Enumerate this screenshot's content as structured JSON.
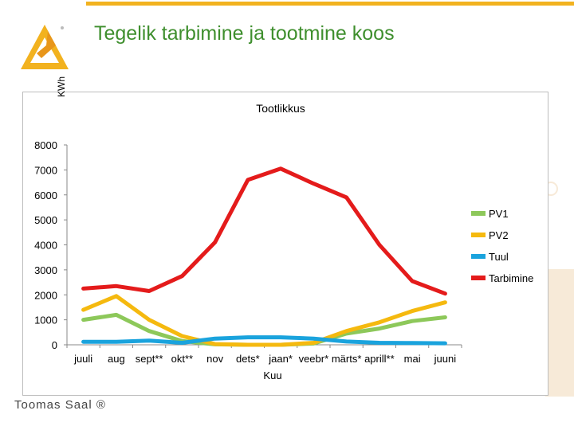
{
  "slide": {
    "title": "Tegelik tarbimine ja tootmine koos",
    "footer": "Toomas Saal ®",
    "accent_color": "#f2b21f",
    "title_color": "#3f8f2e"
  },
  "chart_data": {
    "type": "line",
    "title": "Tootlikkus",
    "ylabel": "KWh",
    "xlabel": "Kuu",
    "categories": [
      "juuli",
      "aug",
      "sept**",
      "okt**",
      "nov",
      "dets*",
      "jaan*",
      "veebr*",
      "märts*",
      "aprill**",
      "mai",
      "juuni"
    ],
    "ylim": [
      0,
      8000
    ],
    "yticks": [
      0,
      1000,
      2000,
      3000,
      4000,
      5000,
      6000,
      7000,
      8000
    ],
    "legend_position": "right",
    "grid": false,
    "series": [
      {
        "name": "PV1",
        "color": "#8dc85a",
        "values": [
          1000,
          1200,
          550,
          150,
          20,
          0,
          0,
          50,
          450,
          650,
          950,
          1100
        ]
      },
      {
        "name": "PV2",
        "color": "#f5b90f",
        "values": [
          1400,
          1950,
          1000,
          350,
          30,
          0,
          0,
          80,
          550,
          900,
          1350,
          1700
        ]
      },
      {
        "name": "Tuul",
        "color": "#1aa3dd",
        "values": [
          120,
          120,
          170,
          80,
          250,
          300,
          300,
          250,
          130,
          80,
          70,
          60
        ]
      },
      {
        "name": "Tarbimine",
        "color": "#e41b1b",
        "values": [
          2250,
          2350,
          2150,
          2750,
          4100,
          6600,
          7050,
          6450,
          5900,
          4000,
          2550,
          2050
        ]
      }
    ]
  }
}
